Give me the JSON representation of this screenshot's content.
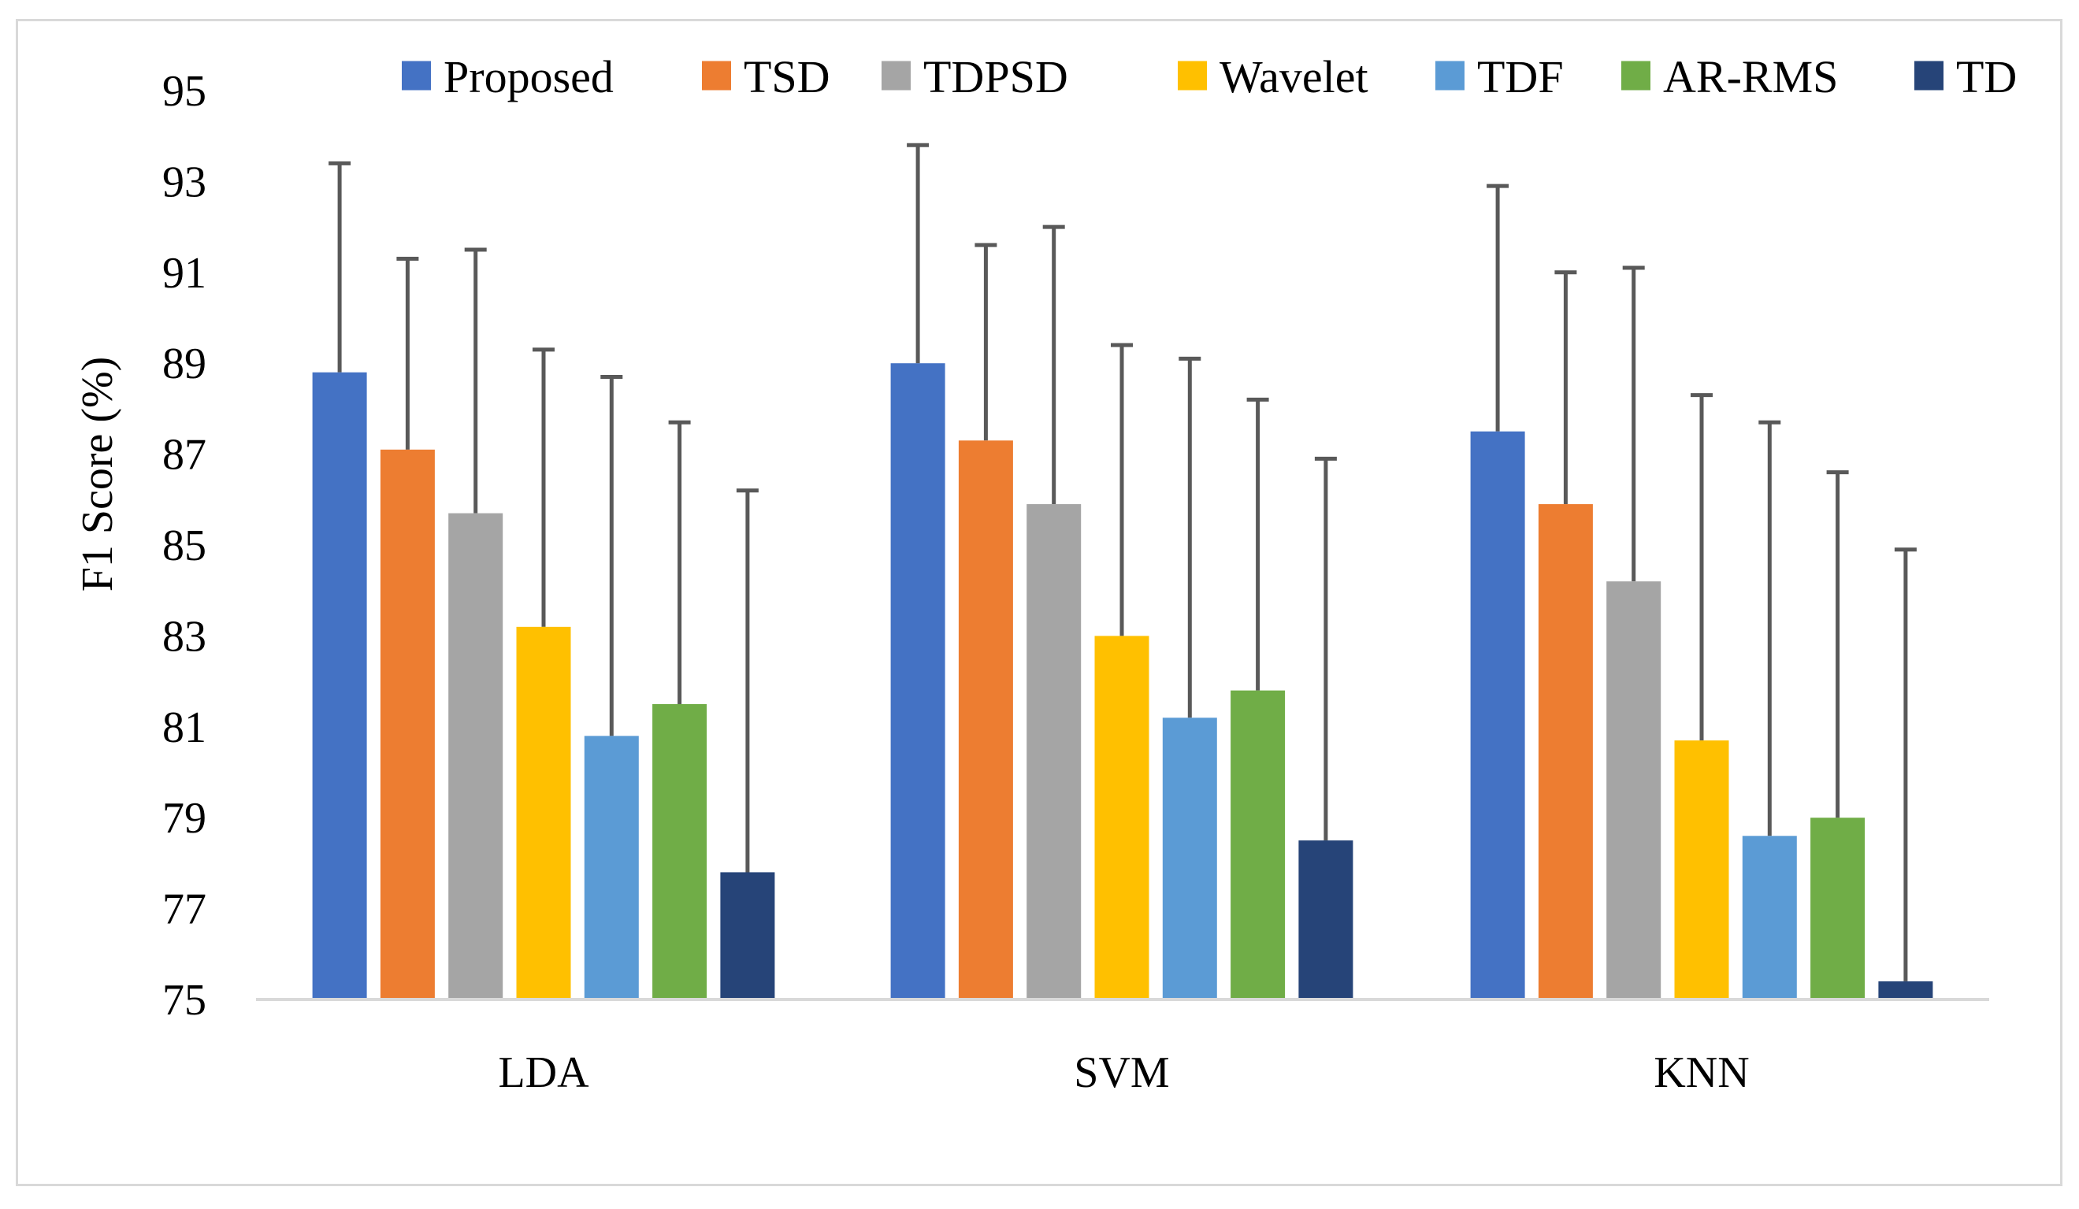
{
  "chart_data": {
    "type": "bar",
    "title": "",
    "xlabel": "",
    "ylabel": "F1 Score (%)",
    "ylim": [
      75,
      95
    ],
    "yticks": [
      75,
      77,
      79,
      81,
      83,
      85,
      87,
      89,
      91,
      93,
      95
    ],
    "grid": false,
    "legend_position": "top-right",
    "categories": [
      "LDA",
      "SVM",
      "KNN"
    ],
    "series": [
      {
        "name": "Proposed",
        "color": "#4472C4",
        "values": [
          88.8,
          89.0,
          87.5
        ],
        "errors": [
          4.6,
          4.8,
          5.4
        ]
      },
      {
        "name": "TSD",
        "color": "#ED7D31",
        "values": [
          87.1,
          87.3,
          85.9
        ],
        "errors": [
          4.2,
          4.3,
          5.1
        ]
      },
      {
        "name": "TDPSD",
        "color": "#A5A5A5",
        "values": [
          85.7,
          85.9,
          84.2
        ],
        "errors": [
          5.8,
          6.1,
          6.9
        ]
      },
      {
        "name": "Wavelet",
        "color": "#FFC000",
        "values": [
          83.2,
          83.0,
          80.7
        ],
        "errors": [
          6.1,
          6.4,
          7.6
        ]
      },
      {
        "name": "TDF",
        "color": "#5B9BD5",
        "values": [
          80.8,
          81.2,
          78.6
        ],
        "errors": [
          7.9,
          7.9,
          9.1
        ]
      },
      {
        "name": "AR-RMS",
        "color": "#70AD47",
        "values": [
          81.5,
          81.8,
          79.0
        ],
        "errors": [
          6.2,
          6.4,
          7.6
        ]
      },
      {
        "name": "TD",
        "color": "#264478",
        "values": [
          77.8,
          78.5,
          75.4
        ],
        "errors": [
          8.4,
          8.4,
          9.5
        ]
      }
    ]
  }
}
